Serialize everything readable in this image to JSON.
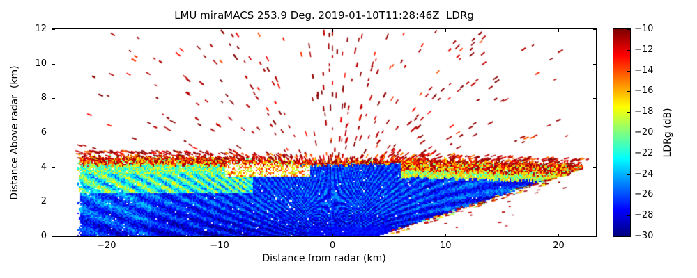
{
  "colors": {
    "background": "#ffffff",
    "text": "#000000",
    "frame": "#000000"
  },
  "chart_data": {
    "type": "heatmap",
    "subtype": "radar_rhi_scan",
    "title": "LMU miraMACS 253.9 Deg. 2019-01-10T11:28:46Z  LDRg",
    "xlabel": "Distance from radar (km)",
    "ylabel": "Distance Above radar  (km)",
    "xlim": [
      -24.8,
      23.3
    ],
    "ylim": [
      0,
      12
    ],
    "xticks": [
      -20,
      -10,
      0,
      10,
      20
    ],
    "yticks": [
      0,
      2,
      4,
      6,
      8,
      10,
      12
    ],
    "grid": false,
    "colorbar": {
      "label": "LDRg (dB)",
      "colormap": "jet",
      "vmin": -30,
      "vmax": -10,
      "ticks": [
        -10,
        -12,
        -14,
        -16,
        -18,
        -20,
        -22,
        -24,
        -26,
        -28,
        -30
      ]
    },
    "scan": {
      "origin_km": [
        0,
        -0.5
      ],
      "max_range_km": 23.5,
      "x_extent_km": [
        -22.6,
        22.3
      ],
      "echo_top_km": {
        "left": 4.62,
        "center": 4.35,
        "right": 4.2
      },
      "right_base_edge": {
        "start_x_km": 4,
        "slope_km_per_km": 0.215
      },
      "melting_layer_km": [
        4.1,
        4.65
      ],
      "melting_layer_ldr_db": [
        -18,
        -10
      ],
      "main_echo_ldr_db": [
        -30,
        -23
      ],
      "left_enhanced_layer_km": [
        2.5,
        3.7
      ],
      "left_enhanced_layer_ldr_db": [
        -25,
        -17
      ],
      "noise_speckle_ldr_db": [
        -12,
        -10
      ],
      "description": "Dense precipitation echo (LDR -30 to -23 dB, blue) below ~4.6 km; bright melting-layer band (LDR -18 to -10 dB, yellow/orange/red) near the echo top; scattered dark-red noise speckles aligned along radar rays above the echo up to 12 km; on the right side the lower data edge rises linearly from ~4 km range to ~3.9 km height at 22 km."
    }
  }
}
